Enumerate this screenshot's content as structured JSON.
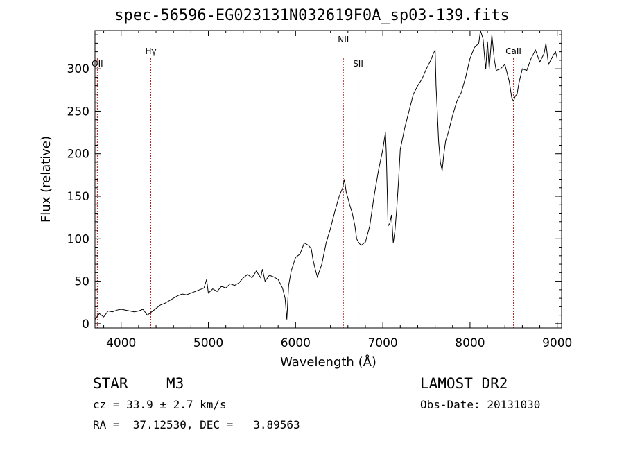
{
  "chart_data": {
    "type": "line",
    "title": "spec-56596-EG023131N032619F0A_sp03-139.fits",
    "xlabel": "Wavelength (Å)",
    "ylabel": "Flux (relative)",
    "xlim": [
      3700,
      9050
    ],
    "ylim": [
      -5,
      345
    ],
    "xticks": [
      4000,
      5000,
      6000,
      7000,
      8000,
      9000
    ],
    "yticks": [
      0,
      50,
      100,
      150,
      200,
      250,
      300
    ],
    "series": [
      {
        "name": "flux",
        "x": [
          3700,
          3750,
          3800,
          3850,
          3900,
          3950,
          4000,
          4050,
          4100,
          4150,
          4200,
          4250,
          4300,
          4350,
          4400,
          4450,
          4500,
          4550,
          4600,
          4650,
          4700,
          4750,
          4800,
          4850,
          4900,
          4950,
          4980,
          5000,
          5050,
          5100,
          5150,
          5200,
          5250,
          5300,
          5350,
          5400,
          5450,
          5500,
          5550,
          5600,
          5620,
          5650,
          5700,
          5750,
          5800,
          5850,
          5880,
          5900,
          5920,
          5950,
          6000,
          6050,
          6100,
          6150,
          6180,
          6200,
          6230,
          6250,
          6300,
          6350,
          6400,
          6450,
          6500,
          6540,
          6560,
          6580,
          6600,
          6620,
          6650,
          6680,
          6700,
          6720,
          6750,
          6800,
          6850,
          6900,
          6950,
          7000,
          7030,
          7040,
          7060,
          7080,
          7100,
          7120,
          7140,
          7160,
          7180,
          7200,
          7250,
          7300,
          7350,
          7400,
          7450,
          7500,
          7550,
          7580,
          7600,
          7610,
          7620,
          7640,
          7660,
          7680,
          7700,
          7720,
          7750,
          7800,
          7850,
          7900,
          7950,
          8000,
          8050,
          8100,
          8120,
          8150,
          8170,
          8180,
          8200,
          8220,
          8250,
          8280,
          8300,
          8350,
          8400,
          8450,
          8480,
          8500,
          8520,
          8540,
          8560,
          8600,
          8650,
          8700,
          8750,
          8800,
          8850,
          8870,
          8900,
          8950,
          8980,
          9000
        ],
        "y": [
          5,
          12,
          8,
          15,
          14,
          16,
          17,
          16,
          15,
          14,
          15,
          17,
          10,
          14,
          18,
          22,
          24,
          27,
          30,
          33,
          35,
          34,
          36,
          38,
          40,
          42,
          52,
          36,
          41,
          38,
          44,
          42,
          47,
          45,
          48,
          54,
          58,
          54,
          62,
          54,
          64,
          50,
          57,
          55,
          52,
          42,
          30,
          5,
          45,
          62,
          78,
          82,
          95,
          92,
          88,
          75,
          62,
          55,
          70,
          95,
          112,
          132,
          150,
          160,
          170,
          155,
          148,
          140,
          130,
          115,
          100,
          96,
          92,
          96,
          115,
          150,
          180,
          205,
          225,
          200,
          115,
          118,
          128,
          95,
          110,
          135,
          168,
          205,
          230,
          250,
          270,
          280,
          288,
          300,
          310,
          318,
          322,
          280,
          260,
          215,
          190,
          180,
          200,
          215,
          225,
          245,
          262,
          272,
          290,
          312,
          325,
          330,
          345,
          335,
          310,
          300,
          332,
          300,
          340,
          310,
          298,
          300,
          305,
          285,
          265,
          262,
          268,
          270,
          283,
          300,
          298,
          312,
          322,
          308,
          318,
          330,
          305,
          315,
          320,
          312
        ]
      }
    ],
    "lines": [
      {
        "label": "OII",
        "wavelength": 3727
      },
      {
        "label": "Hγ",
        "wavelength": 4340
      },
      {
        "label": "NII",
        "wavelength": 6548
      },
      {
        "label": "SII",
        "wavelength": 6717
      },
      {
        "label": "CaII",
        "wavelength": 8498
      }
    ]
  },
  "info": {
    "class": "STAR",
    "subclass": "M3",
    "cz": "cz = 33.9 ± 2.7 km/s",
    "ra_dec": "RA =  37.12530, DEC =   3.89563",
    "survey": "LAMOST DR2",
    "obs_date": "Obs-Date: 20131030"
  },
  "colors": {
    "spectrum": "#000000",
    "line_markers": "#b22222"
  }
}
